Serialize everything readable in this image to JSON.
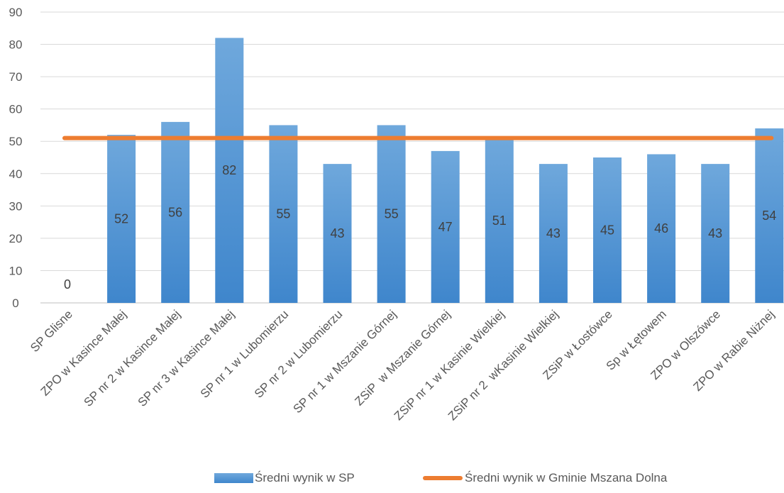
{
  "chart_data": {
    "type": "bar",
    "categories": [
      "SP Glisne",
      "ZPO w Kasince Małej",
      "SP nr 2 w Kasince Małej",
      "SP nr 3 w Kasince Małej",
      "SP nr 1 w Lubomierzu",
      "SP nr 2 w Lubomierzu",
      "SP nr 1 w Mszanie Górnej",
      "ZSiP  w Mszanie Górnej",
      "ZSiP nr 1 w Kasinie Wielkiej",
      "ZSiP nr 2  wKasinie Wielkiej",
      "ZSiP w Łostówce",
      "Sp w Łętowem",
      "ZPO w Olszówce",
      "ZPO w Rabie Niżnej"
    ],
    "series": [
      {
        "name": "Średni wynik w SP",
        "type": "bar",
        "color": "#5B9BD5",
        "values": [
          0,
          52,
          56,
          82,
          55,
          43,
          55,
          47,
          51,
          43,
          45,
          46,
          43,
          54
        ]
      },
      {
        "name": "Średni wynik w Gminie Mszana Dolna",
        "type": "line",
        "color": "#ED7D31",
        "values": [
          51,
          51,
          51,
          51,
          51,
          51,
          51,
          51,
          51,
          51,
          51,
          51,
          51,
          51
        ]
      }
    ],
    "yticks": [
      0,
      10,
      20,
      30,
      40,
      50,
      60,
      70,
      80,
      90
    ],
    "ylim": [
      0,
      90
    ],
    "grid": true,
    "legend_position": "bottom"
  },
  "legend": {
    "bar_label": "Średni wynik w SP",
    "line_label": "Średni wynik w Gminie Mszana Dolna"
  }
}
